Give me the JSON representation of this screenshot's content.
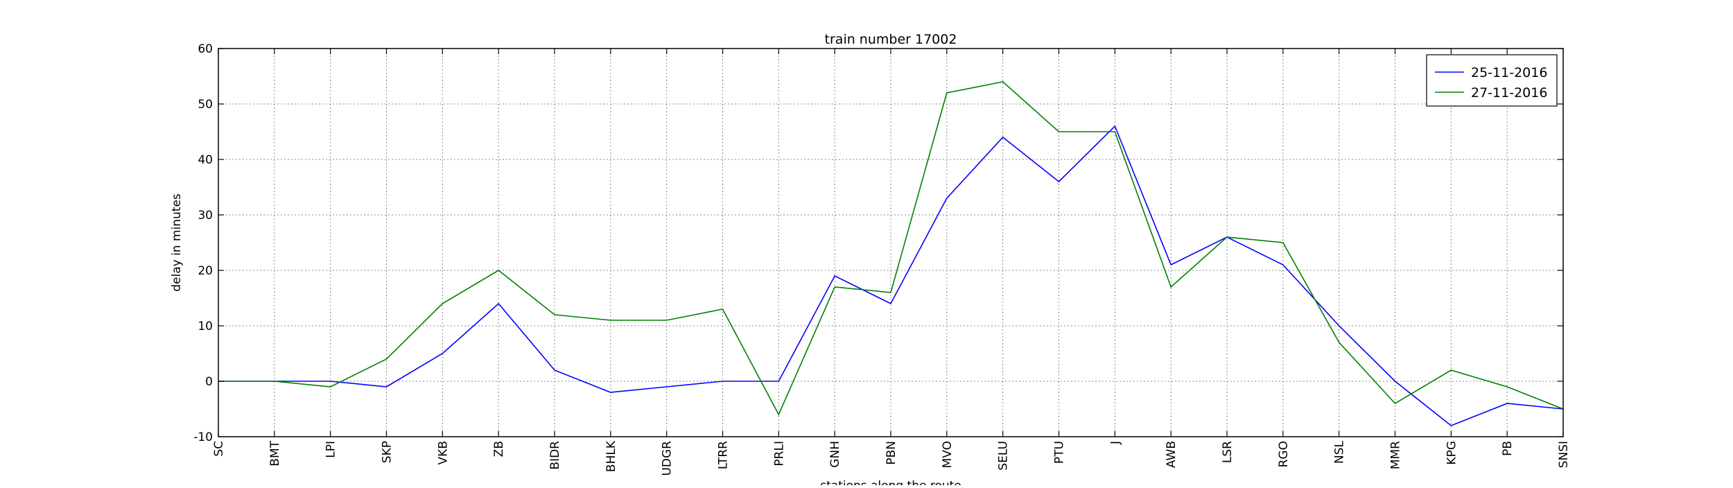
{
  "chart_data": {
    "type": "line",
    "title": "train number 17002",
    "xlabel": "stations along the route",
    "ylabel": "delay in minutes",
    "ylim": [
      -10,
      60
    ],
    "yticks": [
      -10,
      0,
      10,
      20,
      30,
      40,
      50,
      60
    ],
    "grid": true,
    "legend_position": "top-right",
    "categories": [
      "SC",
      "BMT",
      "LPI",
      "SKP",
      "VKB",
      "ZB",
      "BIDR",
      "BHLK",
      "UDGR",
      "LTRR",
      "PRLI",
      "GNH",
      "PBN",
      "MVO",
      "SELU",
      "PTU",
      "J",
      "AWB",
      "LSR",
      "RGO",
      "NSL",
      "MMR",
      "KPG",
      "PB",
      "SNSI"
    ],
    "series": [
      {
        "name": "25-11-2016",
        "color": "#0000ff",
        "values": [
          0,
          0,
          0,
          -1,
          5,
          14,
          2,
          -2,
          -1,
          0,
          0,
          19,
          14,
          33,
          44,
          36,
          46,
          21,
          26,
          21,
          10,
          0,
          -8,
          -4,
          -5
        ]
      },
      {
        "name": "27-11-2016",
        "color": "#008000",
        "values": [
          0,
          0,
          -1,
          4,
          14,
          20,
          12,
          11,
          11,
          13,
          -6,
          17,
          16,
          52,
          54,
          45,
          45,
          17,
          26,
          25,
          7,
          -4,
          2,
          -1,
          -5
        ]
      }
    ]
  }
}
